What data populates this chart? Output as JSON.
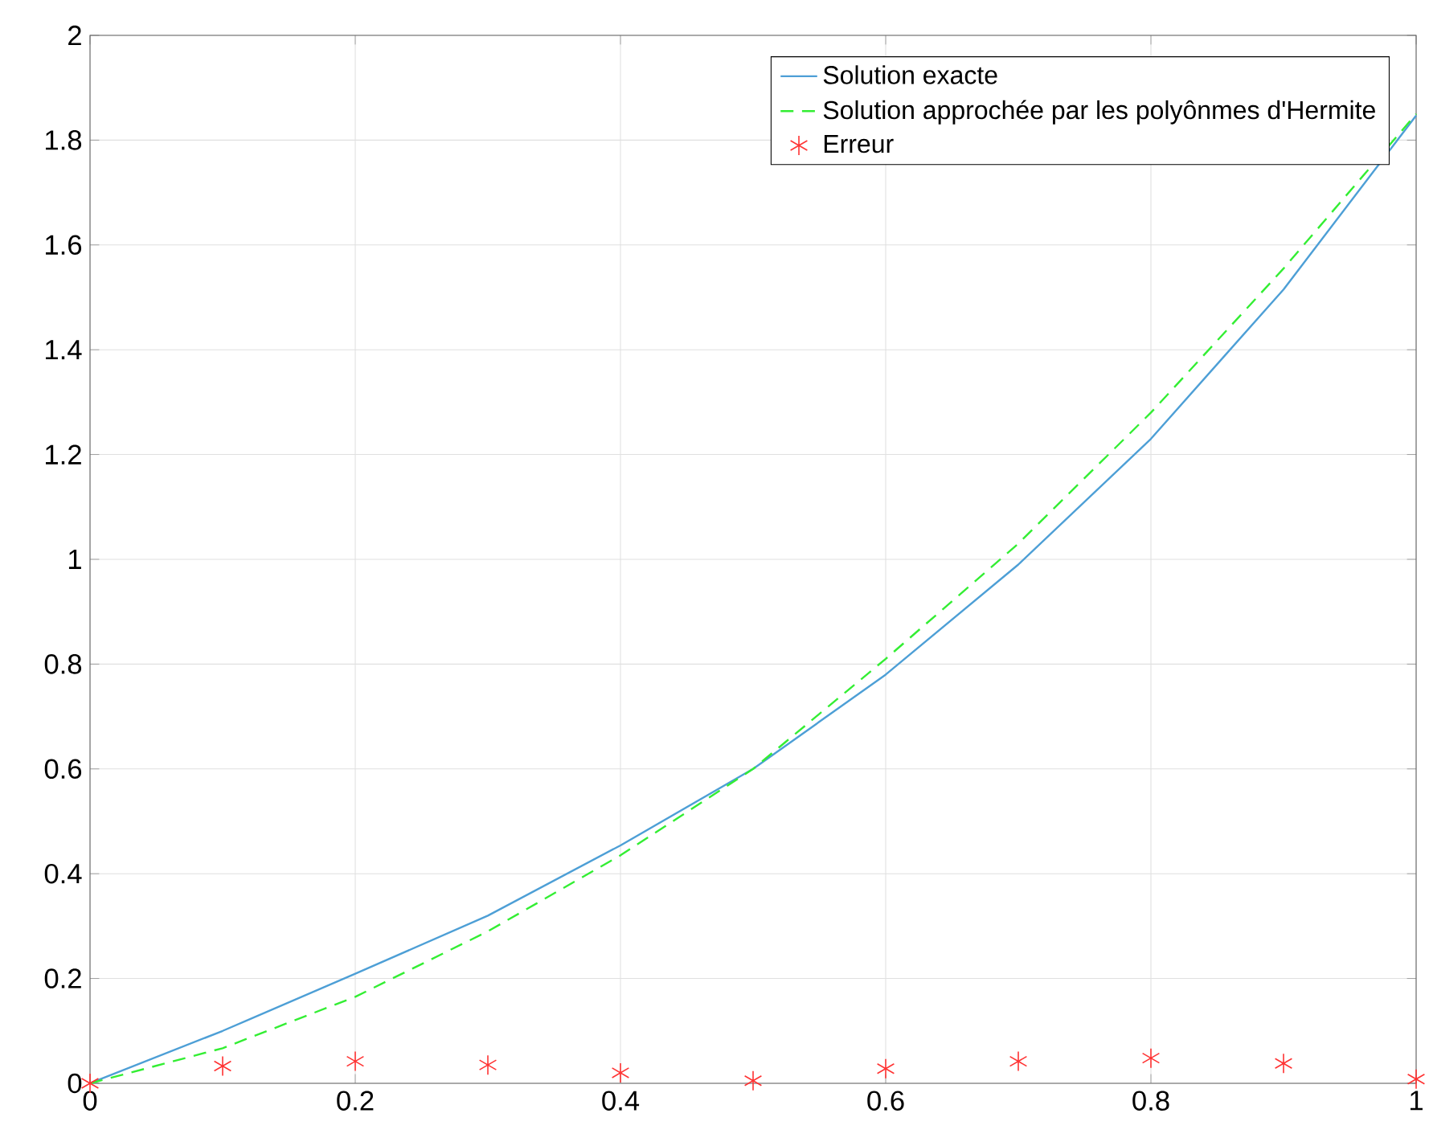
{
  "chart_data": {
    "type": "line",
    "x": [
      0,
      0.1,
      0.2,
      0.3,
      0.4,
      0.5,
      0.6,
      0.7,
      0.8,
      0.9,
      1
    ],
    "series": [
      {
        "name": "Solution exacte",
        "color": "#4d9fd6",
        "line_style": "solid",
        "marker": "none",
        "values": [
          0,
          0.1,
          0.209,
          0.32,
          0.454,
          0.6,
          0.78,
          0.99,
          1.23,
          1.515,
          1.847
        ]
      },
      {
        "name": "Solution approchée par les polyônmes d'Hermite",
        "color": "#33ee33",
        "line_style": "dashed",
        "marker": "none",
        "values": [
          0,
          0.067,
          0.165,
          0.29,
          0.435,
          0.6,
          0.81,
          1.03,
          1.28,
          1.555,
          1.85
        ]
      },
      {
        "name": "Erreur",
        "type": "scatter",
        "color": "#ff3333",
        "marker": "cross",
        "values": [
          0,
          0.033,
          0.042,
          0.035,
          0.02,
          0.005,
          0.028,
          0.042,
          0.048,
          0.038,
          0.008
        ]
      }
    ],
    "xlim": [
      0,
      1
    ],
    "ylim": [
      0,
      2
    ],
    "xticks": [
      0,
      0.2,
      0.4,
      0.6,
      0.8,
      1
    ],
    "yticks": [
      0,
      0.2,
      0.4,
      0.6,
      0.8,
      1,
      1.2,
      1.4,
      1.6,
      1.8,
      2
    ],
    "grid": true,
    "legend": "top right"
  }
}
